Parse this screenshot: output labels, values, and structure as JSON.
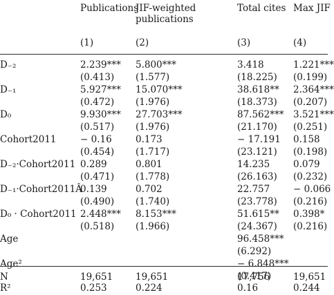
{
  "headers": {
    "col1": [
      "Publications"
    ],
    "col2": [
      "JIF-weighted",
      "publications"
    ],
    "col3": [
      "Total cites"
    ],
    "col4": [
      "Max JIF"
    ],
    "numbers": [
      "(1)",
      "(2)",
      "(3)",
      "(4)"
    ]
  },
  "rows": [
    {
      "label": "D₋₂",
      "values": [
        "2.239***",
        "5.800***",
        "3.418",
        "1.221***"
      ]
    },
    {
      "label": "",
      "values": [
        "(0.413)",
        "(1.577)",
        "(18.225)",
        "(0.199)"
      ]
    },
    {
      "label": "D₋₁",
      "values": [
        "5.927***",
        "15.070***",
        "38.618**",
        "2.364***"
      ]
    },
    {
      "label": "",
      "values": [
        "(0.472)",
        "(1.976)",
        "(18.373)",
        "(0.207)"
      ]
    },
    {
      "label": "D₀",
      "values": [
        "9.930***",
        "27.703***",
        "87.562***",
        "3.521***"
      ]
    },
    {
      "label": "",
      "values": [
        "(0.517)",
        "(1.976)",
        "(21.170)",
        "(0.251)"
      ]
    },
    {
      "label": "Cohort2011",
      "values": [
        "− 0.16",
        "0.173",
        "− 17.191",
        "0.158"
      ]
    },
    {
      "label": "",
      "values": [
        "(0.454)",
        "(1.717)",
        "(23.121)",
        "(0.198)"
      ]
    },
    {
      "label": "D₋₂·Cohort2011",
      "values": [
        "0.289",
        "0.801",
        "14.235",
        "0.079"
      ]
    },
    {
      "label": "",
      "values": [
        "(0.471)",
        "(1.778)",
        "(26.163)",
        "(0.232)"
      ]
    },
    {
      "label": "D₋₁·Cohort2011Â",
      "values": [
        "0.139",
        "0.702",
        "22.757",
        "− 0.066"
      ]
    },
    {
      "label": "",
      "values": [
        "(0.490)",
        "(1.740)",
        "(23.778)",
        "(0.216)"
      ]
    },
    {
      "label": "D₀ · Cohort2011",
      "values": [
        "2.448***",
        "8.153***",
        "51.615**",
        "0.398*"
      ]
    },
    {
      "label": "",
      "values": [
        "(0.518)",
        "(1.966)",
        "(24.367)",
        "(0.216)"
      ]
    },
    {
      "label": "Age",
      "values": [
        "",
        "",
        "96.458***",
        ""
      ]
    },
    {
      "label": "",
      "values": [
        "",
        "",
        "(6.292)",
        ""
      ]
    },
    {
      "label": "Age²",
      "values": [
        "",
        "",
        "− 6.848***",
        ""
      ]
    },
    {
      "label": "",
      "values": [
        "",
        "",
        "(0.417)",
        ""
      ]
    },
    {
      "label": "N",
      "values": [
        "19,651",
        "19,651",
        "17,756",
        "19,651"
      ]
    },
    {
      "label": "R²",
      "values": [
        "0.253",
        "0.224",
        "0.16",
        "0.244"
      ]
    }
  ]
}
